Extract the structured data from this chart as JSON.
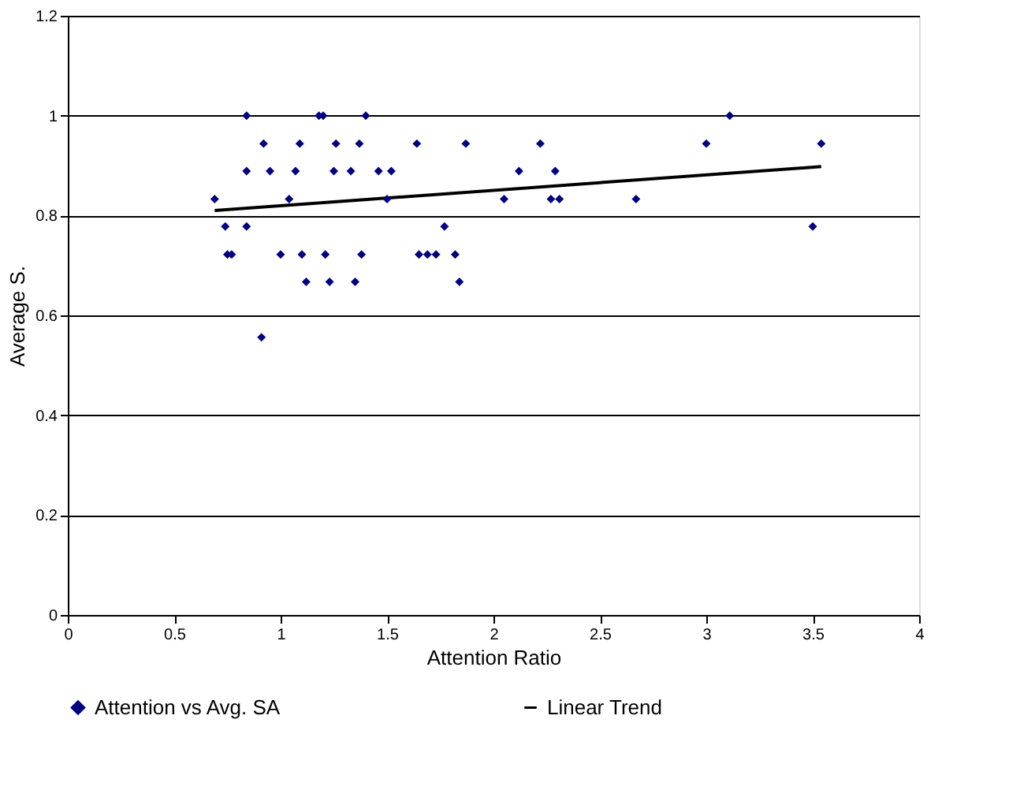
{
  "chart_data": {
    "type": "scatter",
    "xlabel": "Attention Ratio",
    "ylabel": "Average S.",
    "xlim": [
      0,
      4
    ],
    "xticks": [
      0,
      0.5,
      1,
      1.5,
      2,
      2.5,
      3,
      3.5,
      4
    ],
    "ylim": [
      0,
      1.2
    ],
    "yticks": [
      0,
      0.2,
      0.4,
      0.6,
      0.8,
      1,
      1.2
    ],
    "grid": "y",
    "legend": "bottom",
    "series": [
      {
        "name": "Attention vs Avg. SA",
        "marker": "diamond",
        "color": "#000080",
        "x": [
          0.69,
          0.74,
          0.75,
          0.77,
          0.84,
          0.84,
          0.84,
          0.91,
          0.92,
          0.95,
          1.0,
          1.04,
          1.07,
          1.09,
          1.1,
          1.12,
          1.18,
          1.2,
          1.21,
          1.23,
          1.25,
          1.26,
          1.33,
          1.35,
          1.37,
          1.38,
          1.4,
          1.46,
          1.5,
          1.52,
          1.64,
          1.65,
          1.69,
          1.73,
          1.77,
          1.82,
          1.84,
          1.87,
          2.05,
          2.12,
          2.22,
          2.27,
          2.29,
          2.31,
          2.67,
          3.0,
          3.11,
          3.5,
          3.54
        ],
        "values": [
          0.833,
          0.778,
          0.722,
          0.722,
          1,
          0.889,
          0.778,
          0.556,
          0.944,
          0.889,
          0.722,
          0.833,
          0.889,
          0.944,
          0.722,
          0.667,
          1,
          1,
          0.722,
          0.667,
          0.889,
          0.944,
          0.889,
          0.667,
          0.944,
          0.722,
          1,
          0.889,
          0.833,
          0.889,
          0.944,
          0.722,
          0.722,
          0.722,
          0.778,
          0.722,
          0.667,
          0.944,
          0.833,
          0.889,
          0.944,
          0.833,
          0.889,
          0.833,
          0.833,
          0.944,
          1,
          0.778,
          0.944
        ]
      },
      {
        "name": "Linear Trend",
        "type": "line",
        "color": "#000000",
        "x": [
          0.69,
          3.54
        ],
        "values": [
          0.81,
          0.898
        ]
      }
    ]
  }
}
